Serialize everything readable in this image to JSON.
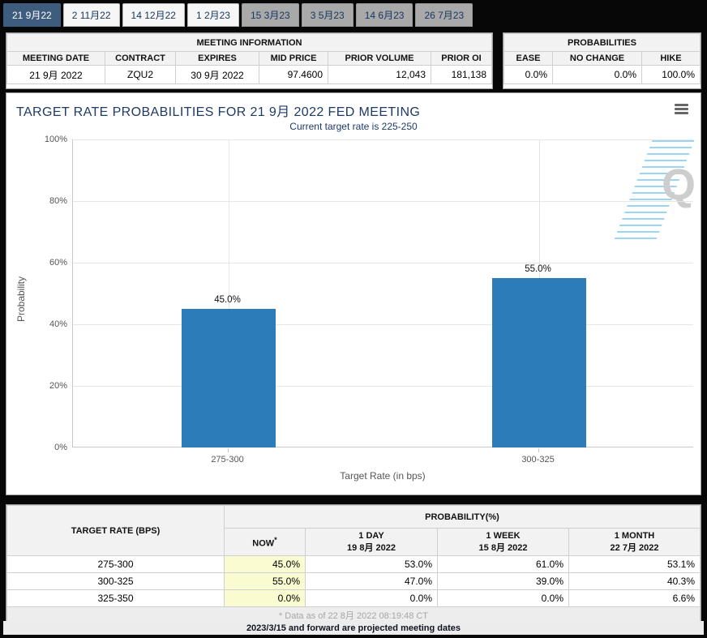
{
  "tabs": [
    {
      "label": "21 9月22",
      "state": "active"
    },
    {
      "label": "2 11月22",
      "state": "normal"
    },
    {
      "label": "14 12月22",
      "state": "normal"
    },
    {
      "label": "1 2月23",
      "state": "normal"
    },
    {
      "label": "15 3月23",
      "state": "disabled"
    },
    {
      "label": "3 5月23",
      "state": "disabled"
    },
    {
      "label": "14 6月23",
      "state": "disabled"
    },
    {
      "label": "26 7月23",
      "state": "disabled"
    }
  ],
  "meeting_info": {
    "title": "MEETING INFORMATION",
    "columns": [
      "MEETING DATE",
      "CONTRACT",
      "EXPIRES",
      "MID PRICE",
      "PRIOR VOLUME",
      "PRIOR OI"
    ],
    "values": [
      "21 9月 2022",
      "ZQU2",
      "30 9月 2022",
      "97.4600",
      "12,043",
      "181,138"
    ]
  },
  "probabilities_summary": {
    "title": "PROBABILITIES",
    "columns": [
      "EASE",
      "NO CHANGE",
      "HIKE"
    ],
    "values": [
      "0.0%",
      "0.0%",
      "100.0%"
    ]
  },
  "chart_data": {
    "type": "bar",
    "title": "TARGET RATE PROBABILITIES FOR 21 9月 2022 FED MEETING",
    "subtitle": "Current target rate is 225-250",
    "categories": [
      "275-300",
      "300-325"
    ],
    "values": [
      45.0,
      55.0
    ],
    "value_labels": [
      "45.0%",
      "55.0%"
    ],
    "xlabel": "Target Rate (in bps)",
    "ylabel": "Probability",
    "ylim": [
      0,
      100
    ],
    "yticks": [
      0,
      20,
      40,
      60,
      80,
      100
    ],
    "ytick_labels": [
      "0%",
      "20%",
      "40%",
      "60%",
      "80%",
      "100%"
    ],
    "bar_color": "#2b7cb8",
    "grid": true,
    "legend": "none",
    "watermark_letter": "Q"
  },
  "prob_table": {
    "rate_header": "TARGET RATE (BPS)",
    "group_header": "PROBABILITY(%)",
    "columns": [
      {
        "line1": "NOW",
        "sup": "*",
        "line2": ""
      },
      {
        "line1": "1 DAY",
        "sup": "",
        "line2": "19 8月 2022"
      },
      {
        "line1": "1 WEEK",
        "sup": "",
        "line2": "15 8月 2022"
      },
      {
        "line1": "1 MONTH",
        "sup": "",
        "line2": "22 7月 2022"
      }
    ],
    "rows": [
      {
        "rate": "275-300",
        "now": "45.0%",
        "day1": "53.0%",
        "week1": "61.0%",
        "month1": "53.1%"
      },
      {
        "rate": "300-325",
        "now": "55.0%",
        "day1": "47.0%",
        "week1": "39.0%",
        "month1": "40.3%"
      },
      {
        "rate": "325-350",
        "now": "0.0%",
        "day1": "0.0%",
        "week1": "0.0%",
        "month1": "6.6%"
      }
    ],
    "footnote": "* Data as of 22 8月 2022 08:19:48 CT"
  },
  "footer_note": "2023/3/15 and forward are projected meeting dates",
  "colors": {
    "bar": "#2b7cb8",
    "title_text": "#1e3a66",
    "active_tab_bg": "#3e5c7d",
    "now_column_bg": "#fbfbd2"
  }
}
